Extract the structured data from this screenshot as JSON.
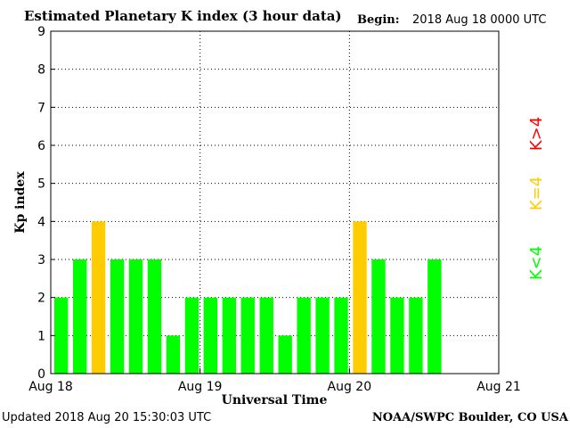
{
  "header": {
    "title": "Estimated Planetary K index (3 hour data)",
    "begin_label": "Begin:",
    "begin_value": "2018 Aug 18 0000 UTC"
  },
  "footer": {
    "updated": "Updated 2018 Aug 20 15:30:03 UTC",
    "source": "NOAA/SWPC Boulder, CO USA"
  },
  "legend": {
    "items": [
      {
        "label": "K<4",
        "color": "#00ff00"
      },
      {
        "label": "K=4",
        "color": "#ffcc00"
      },
      {
        "label": "K>4",
        "color": "#ff0000"
      }
    ]
  },
  "chart_data": {
    "type": "bar",
    "xlabel": "Universal Time",
    "ylabel": "Kp index",
    "ylim": [
      0,
      9
    ],
    "yticks": [
      0,
      1,
      2,
      3,
      4,
      5,
      6,
      7,
      8,
      9
    ],
    "xticks": [
      "Aug 18",
      "Aug 19",
      "Aug 20",
      "Aug 21"
    ],
    "bars_per_day": 8,
    "total_slots": 24,
    "values": [
      2,
      3,
      4,
      3,
      3,
      3,
      1,
      2,
      2,
      2,
      2,
      2,
      1,
      2,
      2,
      2,
      4,
      3,
      2,
      2,
      3
    ],
    "colors": {
      "below": "#00ff00",
      "equal": "#ffcc00",
      "above": "#ff0000"
    },
    "grid": true
  }
}
